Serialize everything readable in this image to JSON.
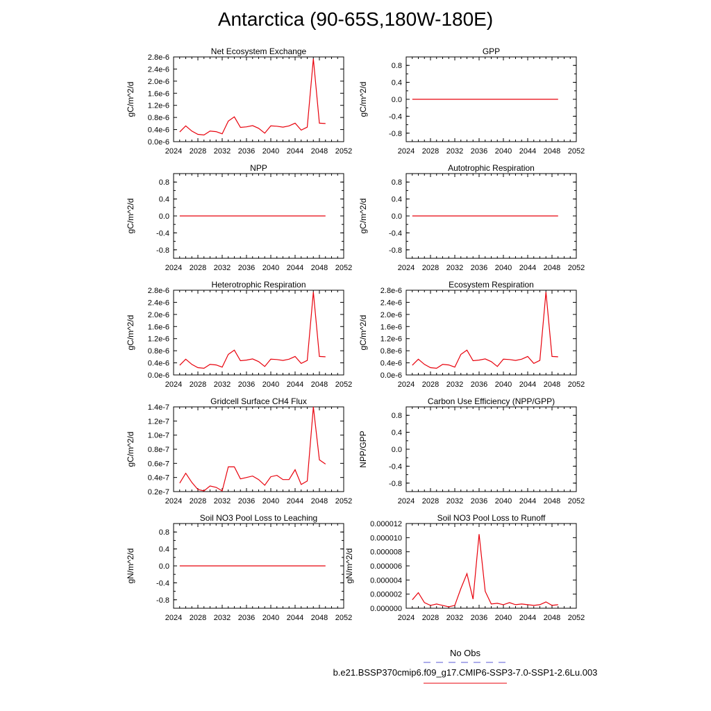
{
  "title": "Antarctica (90-65S,180W-180E)",
  "legend": {
    "obs_label": "No Obs",
    "obs_color": "#5a5ad6",
    "model_label": "b.e21.BSSP370cmip6.f09_g17.CMIP6-SSP3-7.0-SSP1-2.6Lu.003",
    "model_color": "#e8000b"
  },
  "chart_data": [
    {
      "type": "line",
      "title": "Net Ecosystem Exchange",
      "ylabel": "gC/m^2/d",
      "xlim": [
        2024,
        2052
      ],
      "xticks": [
        "2024",
        "2028",
        "2032",
        "2036",
        "2040",
        "2044",
        "2048",
        "2052"
      ],
      "ylim": [
        0,
        2.8e-06
      ],
      "yticks": [
        "0.0e-6",
        "0.4e-6",
        "0.8e-6",
        "1.2e-6",
        "1.6e-6",
        "2.0e-6",
        "2.4e-6",
        "2.8e-6"
      ],
      "x": [
        2025,
        2026,
        2027,
        2028,
        2029,
        2030,
        2031,
        2032,
        2033,
        2034,
        2035,
        2036,
        2037,
        2038,
        2039,
        2040,
        2041,
        2042,
        2043,
        2044,
        2045,
        2046,
        2047,
        2048,
        2049
      ],
      "series": [
        {
          "values": [
            3.2e-07,
            5.2e-07,
            3.5e-07,
            2.4e-07,
            2.2e-07,
            3.5e-07,
            3.3e-07,
            2.6e-07,
            6.8e-07,
            8.2e-07,
            4.7e-07,
            4.9e-07,
            5.3e-07,
            4.4e-07,
            2.8e-07,
            5.2e-07,
            5.1e-07,
            4.8e-07,
            5.2e-07,
            6.1e-07,
            3.8e-07,
            4.8e-07,
            2.74e-06,
            6.1e-07,
            6e-07
          ]
        }
      ]
    },
    {
      "type": "line",
      "title": "GPP",
      "ylabel": "gC/m^2/d",
      "xlim": [
        2024,
        2052
      ],
      "xticks": [
        "2024",
        "2028",
        "2032",
        "2036",
        "2040",
        "2044",
        "2048",
        "2052"
      ],
      "ylim": [
        -1.0,
        1.0
      ],
      "yticks": [
        "-0.8",
        "-0.4",
        "0.0",
        "0.4",
        "0.8"
      ],
      "x": [
        2025,
        2049
      ],
      "series": [
        {
          "values": [
            0,
            0
          ]
        }
      ]
    },
    {
      "type": "line",
      "title": "NPP",
      "ylabel": "gC/m^2/d",
      "xlim": [
        2024,
        2052
      ],
      "xticks": [
        "2024",
        "2028",
        "2032",
        "2036",
        "2040",
        "2044",
        "2048",
        "2052"
      ],
      "ylim": [
        -1.0,
        1.0
      ],
      "yticks": [
        "-0.8",
        "-0.4",
        "0.0",
        "0.4",
        "0.8"
      ],
      "x": [
        2025,
        2049
      ],
      "series": [
        {
          "values": [
            0,
            0
          ]
        }
      ]
    },
    {
      "type": "line",
      "title": "Autotrophic Respiration",
      "ylabel": "gC/m^2/d",
      "xlim": [
        2024,
        2052
      ],
      "xticks": [
        "2024",
        "2028",
        "2032",
        "2036",
        "2040",
        "2044",
        "2048",
        "2052"
      ],
      "ylim": [
        -1.0,
        1.0
      ],
      "yticks": [
        "-0.8",
        "-0.4",
        "0.0",
        "0.4",
        "0.8"
      ],
      "x": [
        2025,
        2049
      ],
      "series": [
        {
          "values": [
            0,
            0
          ]
        }
      ]
    },
    {
      "type": "line",
      "title": "Heterotrophic Respiration",
      "ylabel": "gC/m^2/d",
      "xlim": [
        2024,
        2052
      ],
      "xticks": [
        "2024",
        "2028",
        "2032",
        "2036",
        "2040",
        "2044",
        "2048",
        "2052"
      ],
      "ylim": [
        0,
        2.8e-06
      ],
      "yticks": [
        "0.0e-6",
        "0.4e-6",
        "0.8e-6",
        "1.2e-6",
        "1.6e-6",
        "2.0e-6",
        "2.4e-6",
        "2.8e-6"
      ],
      "x": [
        2025,
        2026,
        2027,
        2028,
        2029,
        2030,
        2031,
        2032,
        2033,
        2034,
        2035,
        2036,
        2037,
        2038,
        2039,
        2040,
        2041,
        2042,
        2043,
        2044,
        2045,
        2046,
        2047,
        2048,
        2049
      ],
      "series": [
        {
          "values": [
            3.2e-07,
            5.2e-07,
            3.5e-07,
            2.4e-07,
            2.2e-07,
            3.5e-07,
            3.3e-07,
            2.6e-07,
            6.8e-07,
            8.2e-07,
            4.7e-07,
            4.9e-07,
            5.3e-07,
            4.4e-07,
            2.8e-07,
            5.2e-07,
            5.1e-07,
            4.8e-07,
            5.2e-07,
            6.1e-07,
            3.8e-07,
            4.8e-07,
            2.74e-06,
            6.1e-07,
            6e-07
          ]
        }
      ]
    },
    {
      "type": "line",
      "title": "Ecosystem Respiration",
      "ylabel": "gC/m^2/d",
      "xlim": [
        2024,
        2052
      ],
      "xticks": [
        "2024",
        "2028",
        "2032",
        "2036",
        "2040",
        "2044",
        "2048",
        "2052"
      ],
      "ylim": [
        0,
        2.8e-06
      ],
      "yticks": [
        "0.0e-6",
        "0.4e-6",
        "0.8e-6",
        "1.2e-6",
        "1.6e-6",
        "2.0e-6",
        "2.4e-6",
        "2.8e-6"
      ],
      "x": [
        2025,
        2026,
        2027,
        2028,
        2029,
        2030,
        2031,
        2032,
        2033,
        2034,
        2035,
        2036,
        2037,
        2038,
        2039,
        2040,
        2041,
        2042,
        2043,
        2044,
        2045,
        2046,
        2047,
        2048,
        2049
      ],
      "series": [
        {
          "values": [
            3.2e-07,
            5.2e-07,
            3.5e-07,
            2.4e-07,
            2.2e-07,
            3.5e-07,
            3.3e-07,
            2.6e-07,
            6.8e-07,
            8.2e-07,
            4.7e-07,
            4.9e-07,
            5.3e-07,
            4.4e-07,
            2.8e-07,
            5.2e-07,
            5.1e-07,
            4.8e-07,
            5.2e-07,
            6.1e-07,
            3.8e-07,
            4.8e-07,
            2.74e-06,
            6.1e-07,
            6e-07
          ]
        }
      ]
    },
    {
      "type": "line",
      "title": "Gridcell Surface CH4 Flux",
      "ylabel": "gC/m^2/d",
      "xlim": [
        2024,
        2052
      ],
      "xticks": [
        "2024",
        "2028",
        "2032",
        "2036",
        "2040",
        "2044",
        "2048",
        "2052"
      ],
      "ylim": [
        2e-08,
        1.4e-07
      ],
      "yticks": [
        "0.2e-7",
        "0.4e-7",
        "0.6e-7",
        "0.8e-7",
        "1.0e-7",
        "1.2e-7",
        "1.4e-7"
      ],
      "x": [
        2025,
        2026,
        2027,
        2028,
        2029,
        2030,
        2031,
        2032,
        2033,
        2034,
        2035,
        2036,
        2037,
        2038,
        2039,
        2040,
        2041,
        2042,
        2043,
        2044,
        2045,
        2046,
        2047,
        2048,
        2049
      ],
      "series": [
        {
          "values": [
            3.2e-08,
            4.6e-08,
            3.3e-08,
            2.3e-08,
            2.1e-08,
            2.8e-08,
            2.6e-08,
            2.1e-08,
            5.5e-08,
            5.5e-08,
            3.8e-08,
            4e-08,
            4.2e-08,
            3.7e-08,
            2.9e-08,
            4.1e-08,
            4.3e-08,
            3.7e-08,
            3.7e-08,
            5.1e-08,
            3e-08,
            3.5e-08,
            1.4e-07,
            6.5e-08,
            5.9e-08
          ]
        }
      ]
    },
    {
      "type": "line",
      "title": "Carbon Use Efficiency (NPP/GPP)",
      "ylabel": "NPP/GPP",
      "xlim": [
        2024,
        2052
      ],
      "xticks": [
        "2024",
        "2028",
        "2032",
        "2036",
        "2040",
        "2044",
        "2048",
        "2052"
      ],
      "ylim": [
        -1.0,
        1.0
      ],
      "yticks": [
        "-0.8",
        "-0.4",
        "0.0",
        "0.4",
        "0.8"
      ],
      "x": [],
      "series": [
        {
          "values": []
        }
      ]
    },
    {
      "type": "line",
      "title": "Soil NO3 Pool Loss to Leaching",
      "ylabel": "gN/m^2/d",
      "xlim": [
        2024,
        2052
      ],
      "xticks": [
        "2024",
        "2028",
        "2032",
        "2036",
        "2040",
        "2044",
        "2048",
        "2052"
      ],
      "ylim": [
        -1.0,
        1.0
      ],
      "yticks": [
        "-0.8",
        "-0.4",
        "0.0",
        "0.4",
        "0.8"
      ],
      "x": [
        2025,
        2049
      ],
      "series": [
        {
          "values": [
            0,
            0
          ]
        }
      ]
    },
    {
      "type": "line",
      "title": "Soil NO3 Pool Loss to Runoff",
      "ylabel": "gN/m^2/d",
      "xlim": [
        2024,
        2052
      ],
      "xticks": [
        "2024",
        "2028",
        "2032",
        "2036",
        "2040",
        "2044",
        "2048",
        "2052"
      ],
      "ylim": [
        0,
        1.2e-05
      ],
      "yticks": [
        "0.000000",
        "0.000002",
        "0.000004",
        "0.000006",
        "0.000008",
        "0.000010",
        "0.000012"
      ],
      "x": [
        2025,
        2026,
        2027,
        2028,
        2029,
        2030,
        2031,
        2032,
        2033,
        2034,
        2035,
        2036,
        2037,
        2038,
        2039,
        2040,
        2041,
        2042,
        2043,
        2044,
        2045,
        2046,
        2047,
        2048,
        2049
      ],
      "series": [
        {
          "values": [
            1.2e-06,
            2.2e-06,
            8e-07,
            4e-07,
            6e-07,
            4e-07,
            2e-07,
            4e-07,
            2.8e-06,
            4.9e-06,
            1.3e-06,
            1.05e-05,
            2.4e-06,
            6e-07,
            7e-07,
            5e-07,
            8e-07,
            5e-07,
            6e-07,
            5e-07,
            4e-07,
            5e-07,
            9e-07,
            4e-07,
            5e-07
          ]
        }
      ]
    }
  ]
}
